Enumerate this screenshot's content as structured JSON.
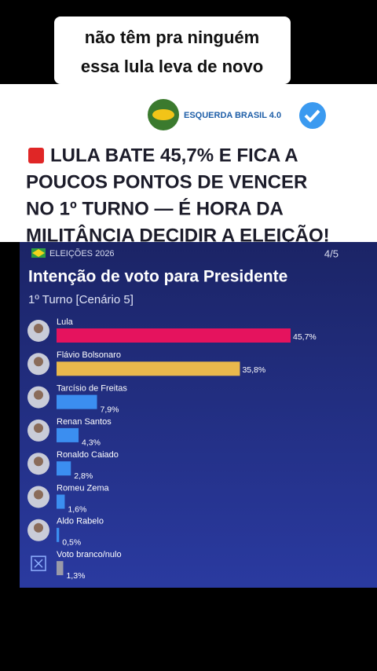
{
  "caption": [
    "não têm pra ninguém",
    "essa lula leva de novo"
  ],
  "post": {
    "account": "ESQUERDA BRASIL 4.0",
    "headline": [
      "LULA BATE 45,7% E FICA A",
      "POUCOS PONTOS DE VENCER",
      "NO 1º TURNO — É HORA DA",
      "MILITÂNCIA DECIDIR A ELEIÇÃO!"
    ]
  },
  "chart_data": {
    "type": "bar",
    "orientation": "horizontal",
    "tag": "ELEIÇÕES 2026",
    "page": "4/5",
    "title": "Intenção de voto para Presidente",
    "subtitle": "1º Turno [Cenário 5]",
    "categories": [
      "Lula",
      "Flávio Bolsonaro",
      "Tarcísio de Freitas",
      "Renan Santos",
      "Ronaldo Caiado",
      "Romeu Zema",
      "Aldo Rabelo",
      "Voto branco/nulo"
    ],
    "values": [
      45.7,
      35.8,
      7.9,
      4.3,
      2.8,
      1.6,
      0.5,
      1.3
    ],
    "value_labels": [
      "45,7%",
      "35,8%",
      "7,9%",
      "4,3%",
      "2,8%",
      "1,6%",
      "0,5%",
      "1,3%"
    ],
    "colors": [
      "#e5135e",
      "#e9b84c",
      "#3b8ef0",
      "#3b8ef0",
      "#3b8ef0",
      "#3b8ef0",
      "#3b8ef0",
      "#9a9aa8"
    ]
  }
}
